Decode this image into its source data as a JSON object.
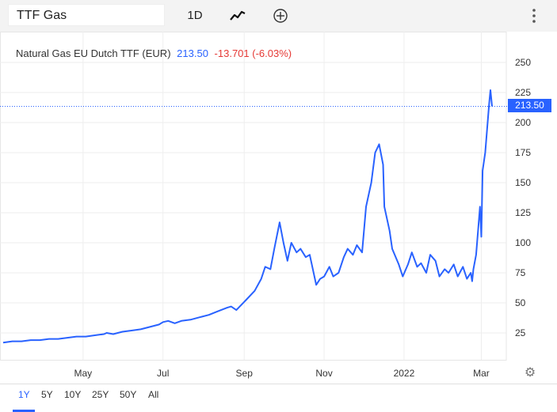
{
  "toolbar": {
    "search_value": "TTF Gas",
    "interval": "1D"
  },
  "legend": {
    "name": "Natural Gas EU Dutch TTF (EUR)",
    "last": "213.50",
    "change": "-13.701 (-6.03%)"
  },
  "price_tag": "213.50",
  "ranges": [
    "1Y",
    "5Y",
    "10Y",
    "25Y",
    "50Y",
    "All"
  ],
  "active_range": "1Y",
  "colors": {
    "line": "#2962ff",
    "negative": "#e53935",
    "toolbar_bg": "#f3f3f3"
  },
  "chart_data": {
    "type": "line",
    "title": "Natural Gas EU Dutch TTF (EUR)",
    "xlabel": "",
    "ylabel": "",
    "ylim": [
      0,
      260
    ],
    "yticks": [
      25,
      50,
      75,
      100,
      125,
      150,
      175,
      200,
      225,
      250
    ],
    "xticks": [
      {
        "label": "May",
        "date": "2021-05-01"
      },
      {
        "label": "Jul",
        "date": "2021-07-01"
      },
      {
        "label": "Sep",
        "date": "2021-09-01"
      },
      {
        "label": "Nov",
        "date": "2021-11-01"
      },
      {
        "label": "2022",
        "date": "2022-01-01"
      },
      {
        "label": "Mar",
        "date": "2022-03-01"
      }
    ],
    "xlim": [
      "2021-03-01",
      "2022-03-11"
    ],
    "grid": true,
    "last_value": 213.5,
    "series": [
      {
        "x": [
          "2021-03-01",
          "2021-03-08",
          "2021-03-15",
          "2021-03-22",
          "2021-03-29",
          "2021-04-05",
          "2021-04-12",
          "2021-04-19",
          "2021-04-26",
          "2021-05-03",
          "2021-05-10",
          "2021-05-17",
          "2021-05-19",
          "2021-05-24",
          "2021-05-31",
          "2021-06-07",
          "2021-06-14",
          "2021-06-21",
          "2021-06-28",
          "2021-07-01",
          "2021-07-05",
          "2021-07-10",
          "2021-07-15",
          "2021-07-22",
          "2021-07-29",
          "2021-08-05",
          "2021-08-12",
          "2021-08-19",
          "2021-08-22",
          "2021-08-26",
          "2021-09-02",
          "2021-09-09",
          "2021-09-14",
          "2021-09-17",
          "2021-09-21",
          "2021-09-24",
          "2021-09-28",
          "2021-10-01",
          "2021-10-04",
          "2021-10-05",
          "2021-10-07",
          "2021-10-11",
          "2021-10-14",
          "2021-10-18",
          "2021-10-21",
          "2021-10-26",
          "2021-10-29",
          "2021-11-01",
          "2021-11-05",
          "2021-11-08",
          "2021-11-12",
          "2021-11-16",
          "2021-11-19",
          "2021-11-23",
          "2021-11-26",
          "2021-11-30",
          "2021-12-03",
          "2021-12-07",
          "2021-12-10",
          "2021-12-13",
          "2021-12-16",
          "2021-12-17",
          "2021-12-21",
          "2021-12-23",
          "2021-12-28",
          "2021-12-31",
          "2022-01-04",
          "2022-01-07",
          "2022-01-11",
          "2022-01-14",
          "2022-01-18",
          "2022-01-21",
          "2022-01-25",
          "2022-01-28",
          "2022-02-01",
          "2022-02-04",
          "2022-02-08",
          "2022-02-11",
          "2022-02-15",
          "2022-02-18",
          "2022-02-21",
          "2022-02-22",
          "2022-02-23",
          "2022-02-25",
          "2022-02-28",
          "2022-03-01",
          "2022-03-02",
          "2022-03-04",
          "2022-03-07",
          "2022-03-08"
        ],
        "y": [
          17,
          18,
          18,
          19,
          19,
          20,
          20,
          21,
          22,
          22,
          23,
          24,
          25,
          24,
          26,
          27,
          28,
          30,
          32,
          34,
          35,
          33,
          35,
          36,
          38,
          40,
          43,
          46,
          47,
          44,
          52,
          60,
          70,
          80,
          78,
          95,
          117,
          100,
          85,
          90,
          100,
          92,
          95,
          88,
          90,
          65,
          70,
          72,
          80,
          72,
          75,
          88,
          95,
          90,
          98,
          92,
          130,
          150,
          175,
          182,
          165,
          130,
          110,
          95,
          82,
          72,
          82,
          92,
          80,
          83,
          75,
          90,
          85,
          72,
          78,
          75,
          82,
          72,
          80,
          70,
          75,
          68,
          78,
          90,
          130,
          105,
          160,
          175,
          216,
          227
        ]
      }
    ]
  }
}
